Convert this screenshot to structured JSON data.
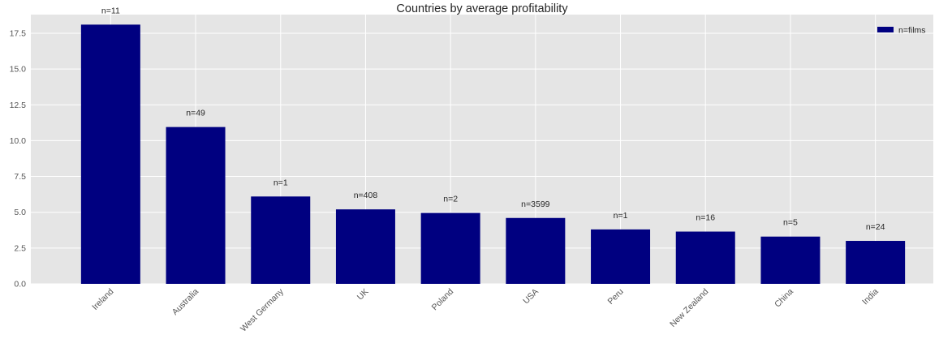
{
  "chart_data": {
    "type": "bar",
    "title": "Countries by average profitability",
    "xlabel": "",
    "ylabel": "",
    "categories": [
      "Ireland",
      "Australia",
      "West Germany",
      "UK",
      "Poland",
      "USA",
      "Peru",
      "New Zealand",
      "China",
      "India"
    ],
    "series": [
      {
        "name": "n=films",
        "values": [
          18.1,
          10.95,
          6.1,
          5.2,
          4.95,
          4.6,
          3.8,
          3.65,
          3.3,
          3.0
        ],
        "labels": [
          "n=11",
          "n=49",
          "n=1",
          "n=408",
          "n=2",
          "n=3599",
          "n=1",
          "n=16",
          "n=5",
          "n=24"
        ],
        "color": "#000080"
      }
    ],
    "ylim": [
      0,
      18.8
    ],
    "yticks": [
      0.0,
      2.5,
      5.0,
      7.5,
      10.0,
      12.5,
      15.0,
      17.5
    ],
    "ytick_labels": [
      "0.0",
      "2.5",
      "5.0",
      "7.5",
      "10.0",
      "12.5",
      "15.0",
      "17.5"
    ],
    "grid": true,
    "legend_position": "top-right",
    "background_color": "#e5e5e5",
    "grid_color": "#ffffff"
  }
}
